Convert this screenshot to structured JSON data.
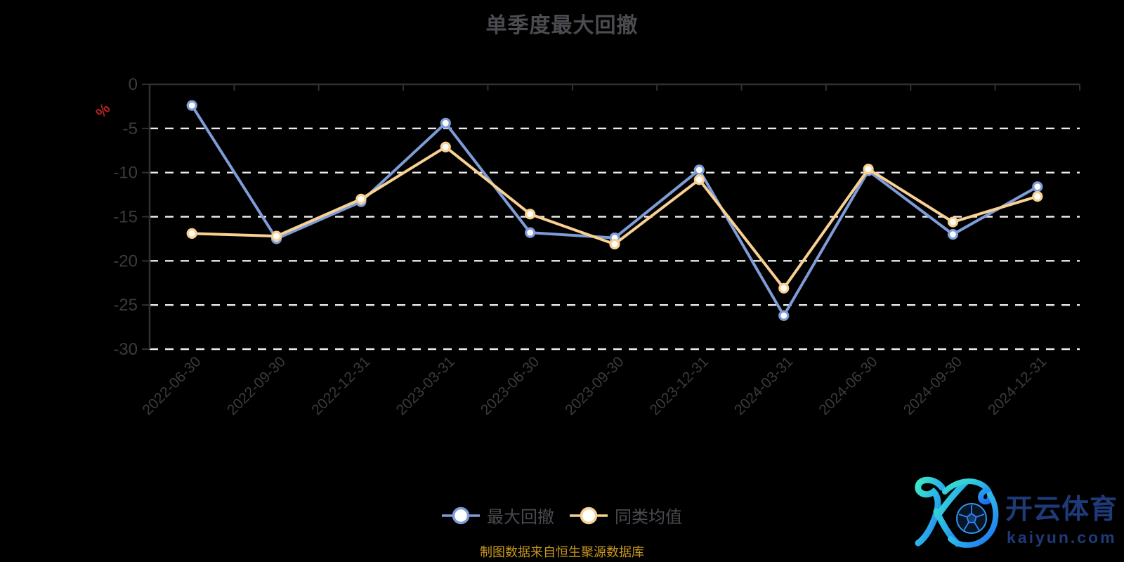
{
  "title": "单季度最大回撤",
  "footer": "制图数据来自恒生聚源数据库",
  "y_axis": {
    "unit_label": "%",
    "ticks": [
      0,
      -5,
      -10,
      -15,
      -20,
      -25,
      -30
    ]
  },
  "watermark": {
    "brand": "开云体育",
    "domain": "kaiyun.com",
    "logo": "kaiyun-k-soccer-logo"
  },
  "colors": {
    "background": "#000000",
    "grid": "#ececec",
    "axis": "#303034",
    "tick_label": "#3b3b3f",
    "title_text": "#4b4b50",
    "legend_text": "#4a4a50",
    "footer_text": "#c6951d",
    "unit_label": "#b42320",
    "series_blue": "#7e9cd8",
    "series_yellow": "#f8d192",
    "point_fill": "#ffffff",
    "watermark_text": "#1e3a78"
  },
  "chart_data": {
    "type": "line",
    "title": "单季度最大回撤",
    "xlabel": "",
    "ylabel": "%",
    "ylim": [
      -30,
      0
    ],
    "grid": true,
    "grid_style": "dashed-white-horizontal",
    "legend_position": "bottom-center",
    "x_labels_rotation": 45,
    "categories": [
      "2022-06-30",
      "2022-09-30",
      "2022-12-31",
      "2023-03-31",
      "2023-06-30",
      "2023-09-30",
      "2023-12-31",
      "2024-03-31",
      "2024-06-30",
      "2024-09-30",
      "2024-12-31"
    ],
    "series": [
      {
        "name": "最大回撤",
        "color": "#7e9cd8",
        "marker": "circle-white-fill",
        "values": [
          -2.4,
          -17.5,
          -13.3,
          -4.4,
          -16.8,
          -17.4,
          -9.7,
          -26.2,
          -9.8,
          -17.0,
          -11.6
        ]
      },
      {
        "name": "同类均值",
        "color": "#f8d192",
        "marker": "circle-white-fill",
        "values": [
          -16.9,
          -17.2,
          -13.0,
          -7.1,
          -14.7,
          -18.1,
          -10.8,
          -23.1,
          -9.6,
          -15.6,
          -12.7
        ]
      }
    ]
  }
}
